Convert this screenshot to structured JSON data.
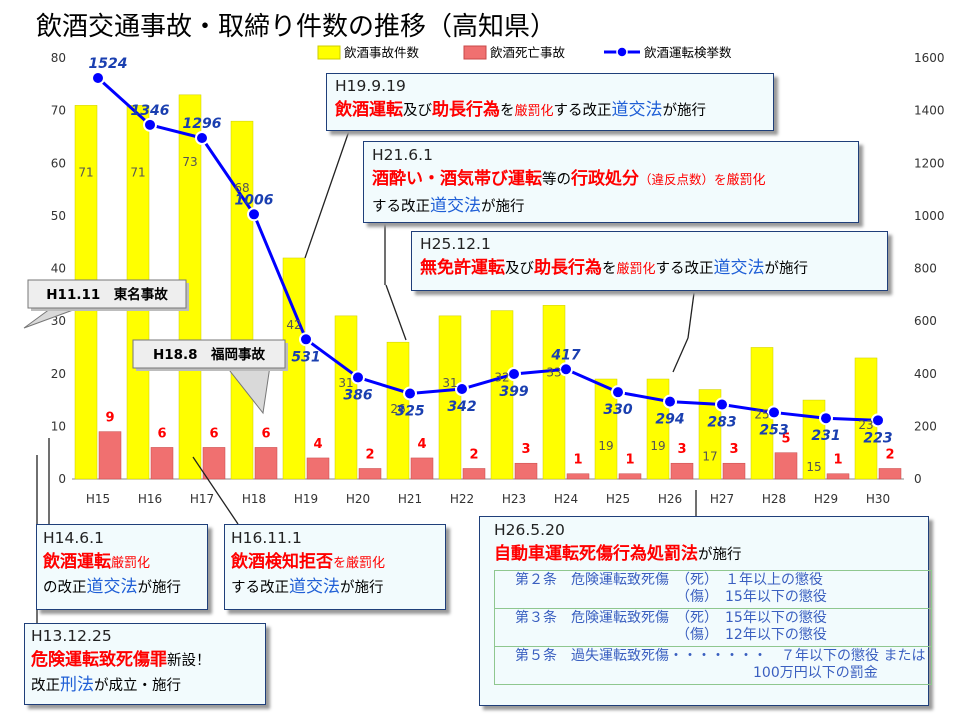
{
  "title": "飲酒交通事故・取締り件数の推移（高知県）",
  "colors": {
    "accidents": "#ffff00",
    "deaths": "#f07070",
    "arrests": "#0000ff",
    "annotation_red": "#ff0000",
    "annotation_blue": "#1f5fd6"
  },
  "chart_data": {
    "type": "bar",
    "categories": [
      "H15",
      "H16",
      "H17",
      "H18",
      "H19",
      "H20",
      "H21",
      "H22",
      "H23",
      "H24",
      "H25",
      "H26",
      "H27",
      "H28",
      "H29",
      "H30"
    ],
    "series": [
      {
        "name": "飲酒事故件数",
        "type": "bar",
        "axis": "left",
        "values": [
          71,
          71,
          73,
          68,
          42,
          31,
          26,
          31,
          32,
          33,
          19,
          19,
          17,
          25,
          15,
          23
        ]
      },
      {
        "name": "飲酒死亡事故",
        "type": "bar",
        "axis": "left",
        "values": [
          9,
          6,
          6,
          6,
          4,
          2,
          4,
          2,
          3,
          1,
          1,
          3,
          3,
          5,
          1,
          2
        ]
      },
      {
        "name": "飲酒運転検挙数",
        "type": "line",
        "axis": "right",
        "values": [
          1524,
          1346,
          1296,
          1006,
          531,
          386,
          325,
          342,
          399,
          417,
          330,
          294,
          283,
          253,
          231,
          223
        ]
      }
    ],
    "left_axis": {
      "ylim": [
        0,
        80
      ],
      "ticks": [
        "0",
        "10",
        "20",
        "30",
        "40",
        "50",
        "60",
        "70",
        "80"
      ]
    },
    "right_axis": {
      "ylim": [
        0,
        1600
      ],
      "ticks": [
        "0",
        "200",
        "400",
        "600",
        "800",
        "1000",
        "1200",
        "1400",
        "1600"
      ]
    },
    "legend": "top",
    "grid": false
  },
  "callouts": {
    "h19": {
      "header": "H19.9.19",
      "r1": "飲酒運転",
      "t1": "及び",
      "r2": "助長行為",
      "t2": "を",
      "rs1": "厳罰化",
      "t3": "する改正",
      "b1": "道交法",
      "t4": "が施行"
    },
    "h21": {
      "header": "H21.6.1",
      "r1": "酒酔い・酒気帯び運転",
      "t1": "等の",
      "r2": "行政処分",
      "p1": "（違反点数）を",
      "rs1": "厳罰化",
      "t2": "する改正",
      "b1": "道交法",
      "t3": "が施行"
    },
    "h25": {
      "header": "H25.12.1",
      "r1": "無免許運転",
      "t1": "及び",
      "r2": "助長行為",
      "t2": "を",
      "rs1": "厳罰化",
      "t3": "する改正",
      "b1": "道交法",
      "t4": "が施行"
    },
    "h14": {
      "header": "H14.6.1",
      "r1": "飲酒運転",
      "rs1": "厳罰化",
      "t1": "の改正",
      "b1": "道交法",
      "t2": "が施行"
    },
    "h16": {
      "header": "H16.11.1",
      "r1": "飲酒検知拒否",
      "rs1": "を厳罰化",
      "t1": "する改正",
      "b1": "道交法",
      "t2": "が施行"
    },
    "h13": {
      "header": "H13.12.25",
      "r1": "危険運転致死傷罪",
      "t1": "新設！",
      "t2": "改正",
      "b1": "刑法",
      "t3": "が成立・施行"
    },
    "h26": {
      "header": "H26.5.20",
      "r1": "自動車運転死傷行為処罰法",
      "t1": "が施行",
      "rows": [
        "第２条　危険運転致死傷　（死）　１年以上の懲役\n　　　　　　　　　　　　（傷）　15年以下の懲役",
        "第３条　危険運転致死傷　（死）　15年以下の懲役\n　　　　　　　　　　　　（傷）　12年以下の懲役",
        "第５条　過失運転致死傷・・・・・・・　７年以下の懲役 または\n　　　　　　　　　　　　　　　　　100万円以下の罰金"
      ]
    },
    "ev1": "H11.11　東名事故",
    "ev2": "H18.8　福岡事故"
  }
}
